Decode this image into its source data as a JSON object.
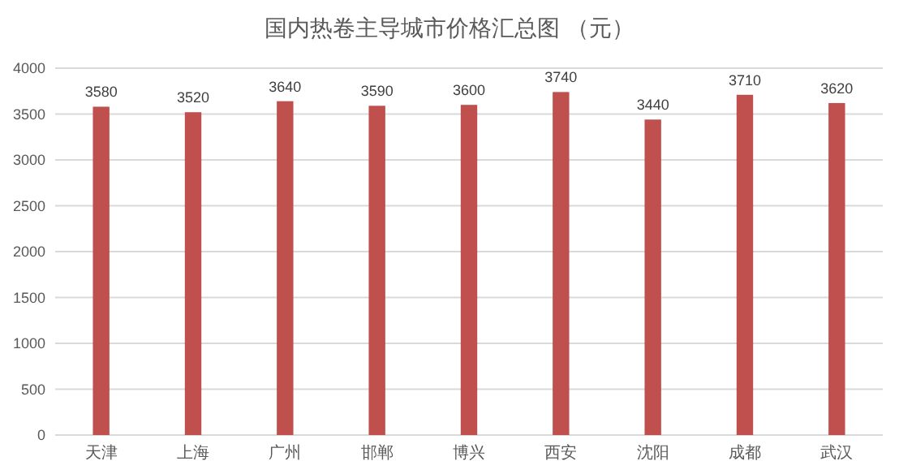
{
  "chart_data": {
    "type": "bar",
    "title": "国内热卷主导城市价格汇总图 （元）",
    "categories": [
      "天津",
      "上海",
      "广州",
      "邯郸",
      "博兴",
      "西安",
      "沈阳",
      "成都",
      "武汉"
    ],
    "values": [
      3580,
      3520,
      3640,
      3590,
      3600,
      3740,
      3440,
      3710,
      3620
    ],
    "color": "#c0504d",
    "data_labels": true,
    "grid": "y",
    "ylim": [
      0,
      4000
    ],
    "yticks": [
      0,
      500,
      1000,
      1500,
      2000,
      2500,
      3000,
      3500,
      4000
    ]
  }
}
